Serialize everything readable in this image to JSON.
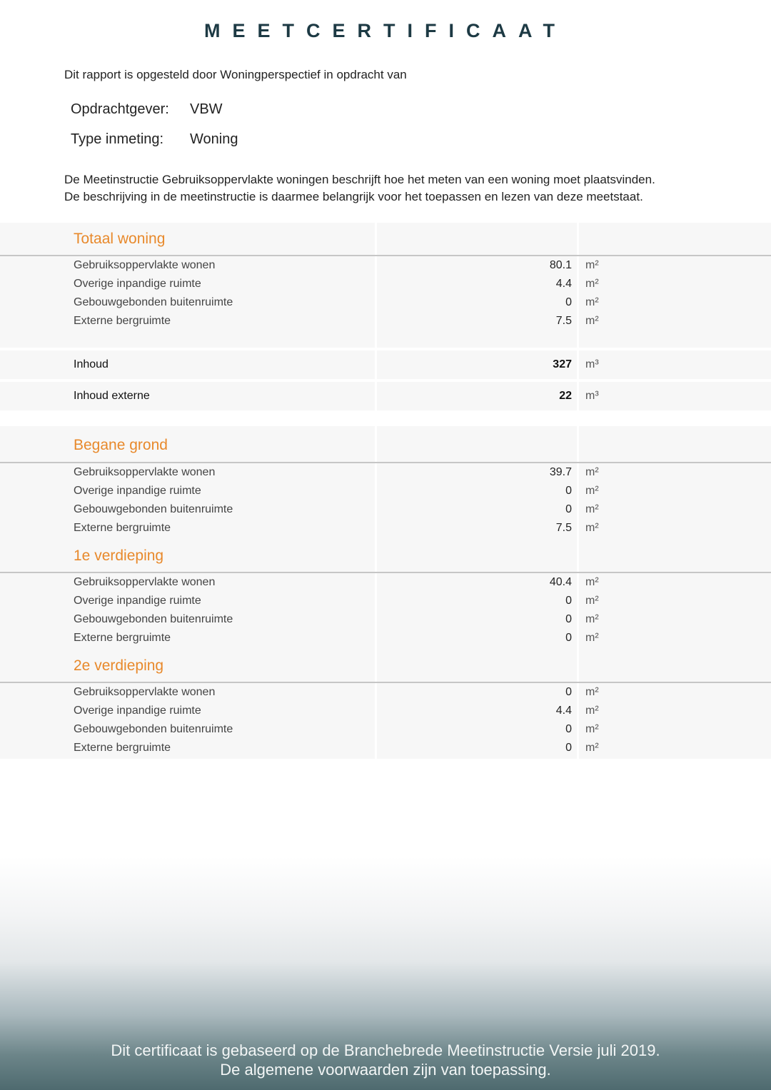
{
  "title": "MEETCERTIFICAAT",
  "intro": "Dit rapport is opgesteld door Woningperspectief in opdracht van",
  "meta": [
    {
      "key": "Opdrachtgever:",
      "value": "VBW"
    },
    {
      "key": "Type inmeting:",
      "value": "Woning"
    }
  ],
  "description": [
    "De Meetinstructie Gebruiksoppervlakte woningen beschrijft hoe het meten van een woning moet plaatsvinden.",
    "De beschrijving in de meetinstructie is daarmee belangrijk voor het toepassen en lezen van deze meetstaat."
  ],
  "colors": {
    "accent": "#e8892b",
    "title": "#1d3a44",
    "row_bg": "#f7f7f7"
  },
  "totaal": {
    "heading": "Totaal woning",
    "rows": [
      {
        "label": "Gebruiksoppervlakte wonen",
        "value": "80.1",
        "unit": "m²"
      },
      {
        "label": "Overige inpandige ruimte",
        "value": "4.4",
        "unit": "m²"
      },
      {
        "label": "Gebouwgebonden buitenruimte",
        "value": "0",
        "unit": "m²"
      },
      {
        "label": "Externe bergruimte",
        "value": "7.5",
        "unit": "m²"
      }
    ],
    "inhoud": {
      "label": "Inhoud",
      "value": "327",
      "unit": "m³"
    },
    "inhoud_externe": {
      "label": "Inhoud externe",
      "value": "22",
      "unit": "m³"
    }
  },
  "floors": [
    {
      "heading": "Begane grond",
      "rows": [
        {
          "label": "Gebruiksoppervlakte wonen",
          "value": "39.7",
          "unit": "m²"
        },
        {
          "label": "Overige inpandige ruimte",
          "value": "0",
          "unit": "m²"
        },
        {
          "label": "Gebouwgebonden buitenruimte",
          "value": "0",
          "unit": "m²"
        },
        {
          "label": "Externe bergruimte",
          "value": "7.5",
          "unit": "m²"
        }
      ]
    },
    {
      "heading": "1e verdieping",
      "rows": [
        {
          "label": "Gebruiksoppervlakte wonen",
          "value": "40.4",
          "unit": "m²"
        },
        {
          "label": "Overige inpandige ruimte",
          "value": "0",
          "unit": "m²"
        },
        {
          "label": "Gebouwgebonden buitenruimte",
          "value": "0",
          "unit": "m²"
        },
        {
          "label": "Externe bergruimte",
          "value": "0",
          "unit": "m²"
        }
      ]
    },
    {
      "heading": "2e verdieping",
      "rows": [
        {
          "label": "Gebruiksoppervlakte wonen",
          "value": "0",
          "unit": "m²"
        },
        {
          "label": "Overige inpandige ruimte",
          "value": "4.4",
          "unit": "m²"
        },
        {
          "label": "Gebouwgebonden buitenruimte",
          "value": "0",
          "unit": "m²"
        },
        {
          "label": "Externe bergruimte",
          "value": "0",
          "unit": "m²"
        }
      ]
    }
  ],
  "footer": [
    "Dit certificaat is gebaseerd op de Branchebrede Meetinstructie Versie juli 2019.",
    "De algemene voorwaarden zijn van toepassing."
  ]
}
